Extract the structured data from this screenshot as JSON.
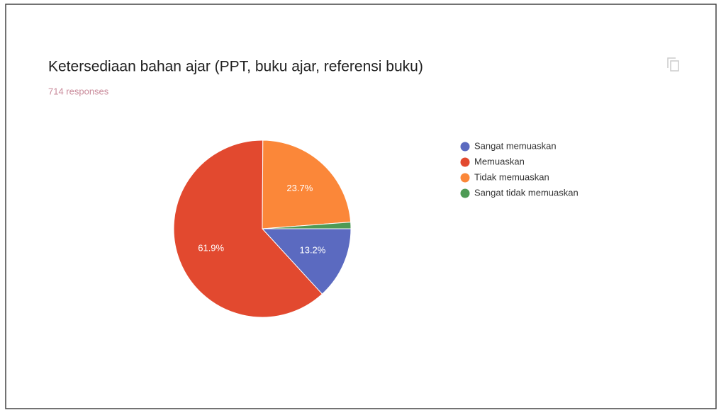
{
  "chart_data": {
    "type": "pie",
    "title": "Ketersediaan bahan ajar (PPT, buku ajar, referensi buku)",
    "subtitle": "714 responses",
    "categories": [
      "Sangat memuaskan",
      "Memuaskan",
      "Tidak memuaskan",
      "Sangat tidak memuaskan"
    ],
    "values": [
      13.2,
      61.9,
      23.7,
      1.2
    ],
    "value_labels": [
      "13.2%",
      "61.9%",
      "23.7%",
      null
    ],
    "colors": [
      "#5b6ac0",
      "#e2492f",
      "#fb8739",
      "#4e9a55"
    ],
    "legend": "right"
  }
}
